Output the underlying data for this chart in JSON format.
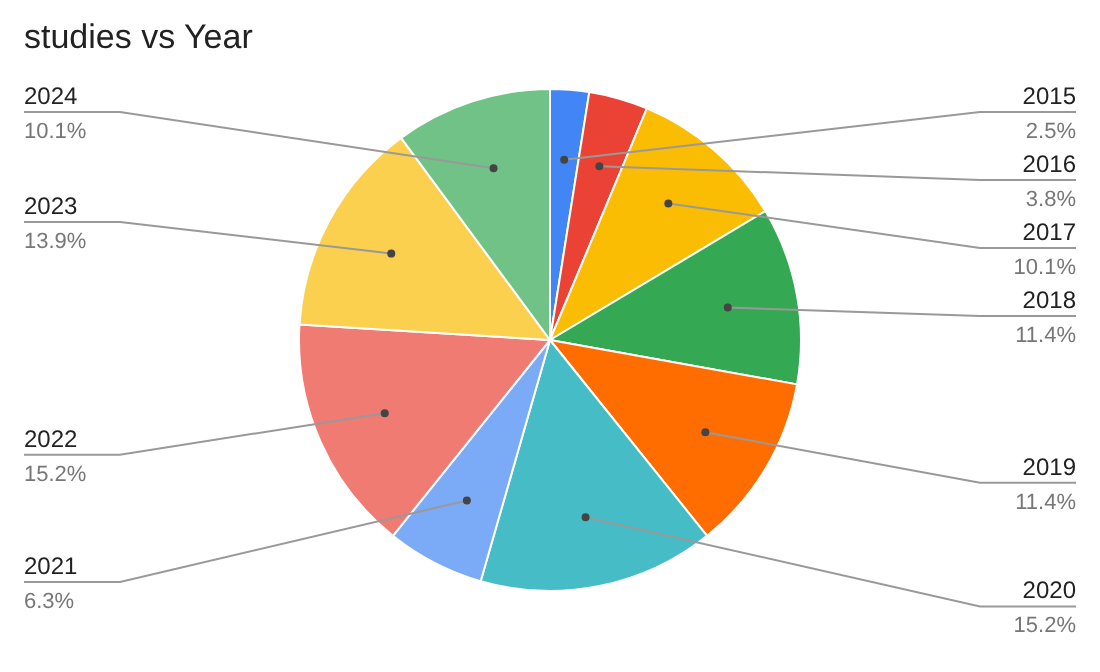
{
  "chart_data": {
    "type": "pie",
    "title": "studies vs Year",
    "categories": [
      "2015",
      "2016",
      "2017",
      "2018",
      "2019",
      "2020",
      "2021",
      "2022",
      "2023",
      "2024"
    ],
    "values": [
      2.5,
      3.8,
      10.1,
      11.4,
      11.4,
      15.2,
      6.3,
      15.2,
      13.9,
      10.1
    ],
    "value_labels": [
      "2.5%",
      "3.8%",
      "10.1%",
      "11.4%",
      "11.4%",
      "15.2%",
      "6.3%",
      "15.2%",
      "13.9%",
      "10.1%"
    ],
    "colors": [
      "#4285f4",
      "#ea4335",
      "#fbbc04",
      "#34a853",
      "#ff6d01",
      "#46bdc6",
      "#7baaf7",
      "#f07b72",
      "#fcd04f",
      "#71c287"
    ],
    "legend": false
  }
}
